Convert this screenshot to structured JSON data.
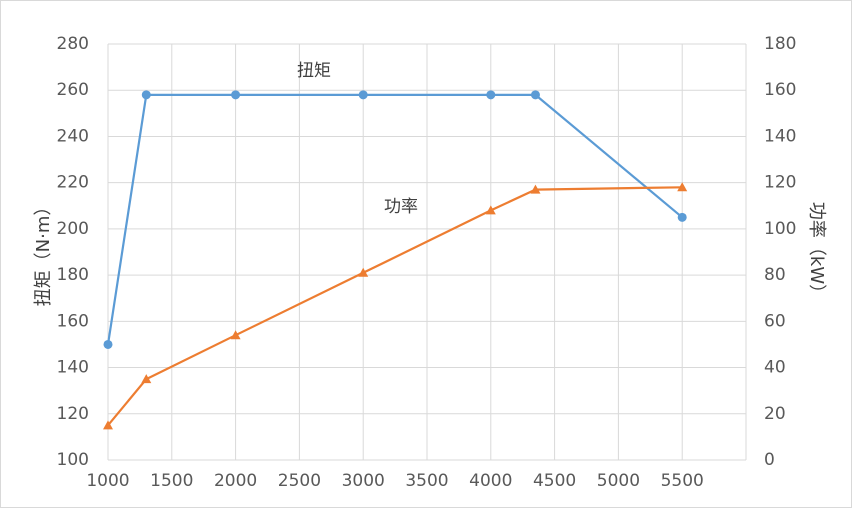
{
  "chart_data": {
    "type": "line",
    "title": "",
    "x": [
      1000,
      1300,
      2000,
      3000,
      4000,
      4350,
      5500
    ],
    "xlim": [
      1000,
      6000
    ],
    "x_ticks": [
      "1000",
      "1500",
      "2000",
      "2500",
      "3000",
      "3500",
      "4000",
      "4500",
      "5000",
      "5500"
    ],
    "y_left": {
      "label": "扭矩（N·m）",
      "lim": [
        100,
        280
      ],
      "ticks": [
        "100",
        "120",
        "140",
        "160",
        "180",
        "200",
        "220",
        "240",
        "260",
        "280"
      ]
    },
    "y_right": {
      "label": "功率（kW）",
      "lim": [
        0,
        180
      ],
      "ticks": [
        "0",
        "20",
        "40",
        "60",
        "80",
        "100",
        "120",
        "140",
        "160",
        "180"
      ]
    },
    "grid": true,
    "series": [
      {
        "name": "扭矩",
        "axis": "left",
        "color": "#5b9bd5",
        "marker": "circle",
        "values": [
          150,
          258,
          258,
          258,
          258,
          258,
          205
        ]
      },
      {
        "name": "功率",
        "axis": "right",
        "color": "#ed7d31",
        "marker": "triangle",
        "values": [
          15,
          35,
          54,
          81,
          108,
          117,
          118
        ]
      }
    ]
  }
}
